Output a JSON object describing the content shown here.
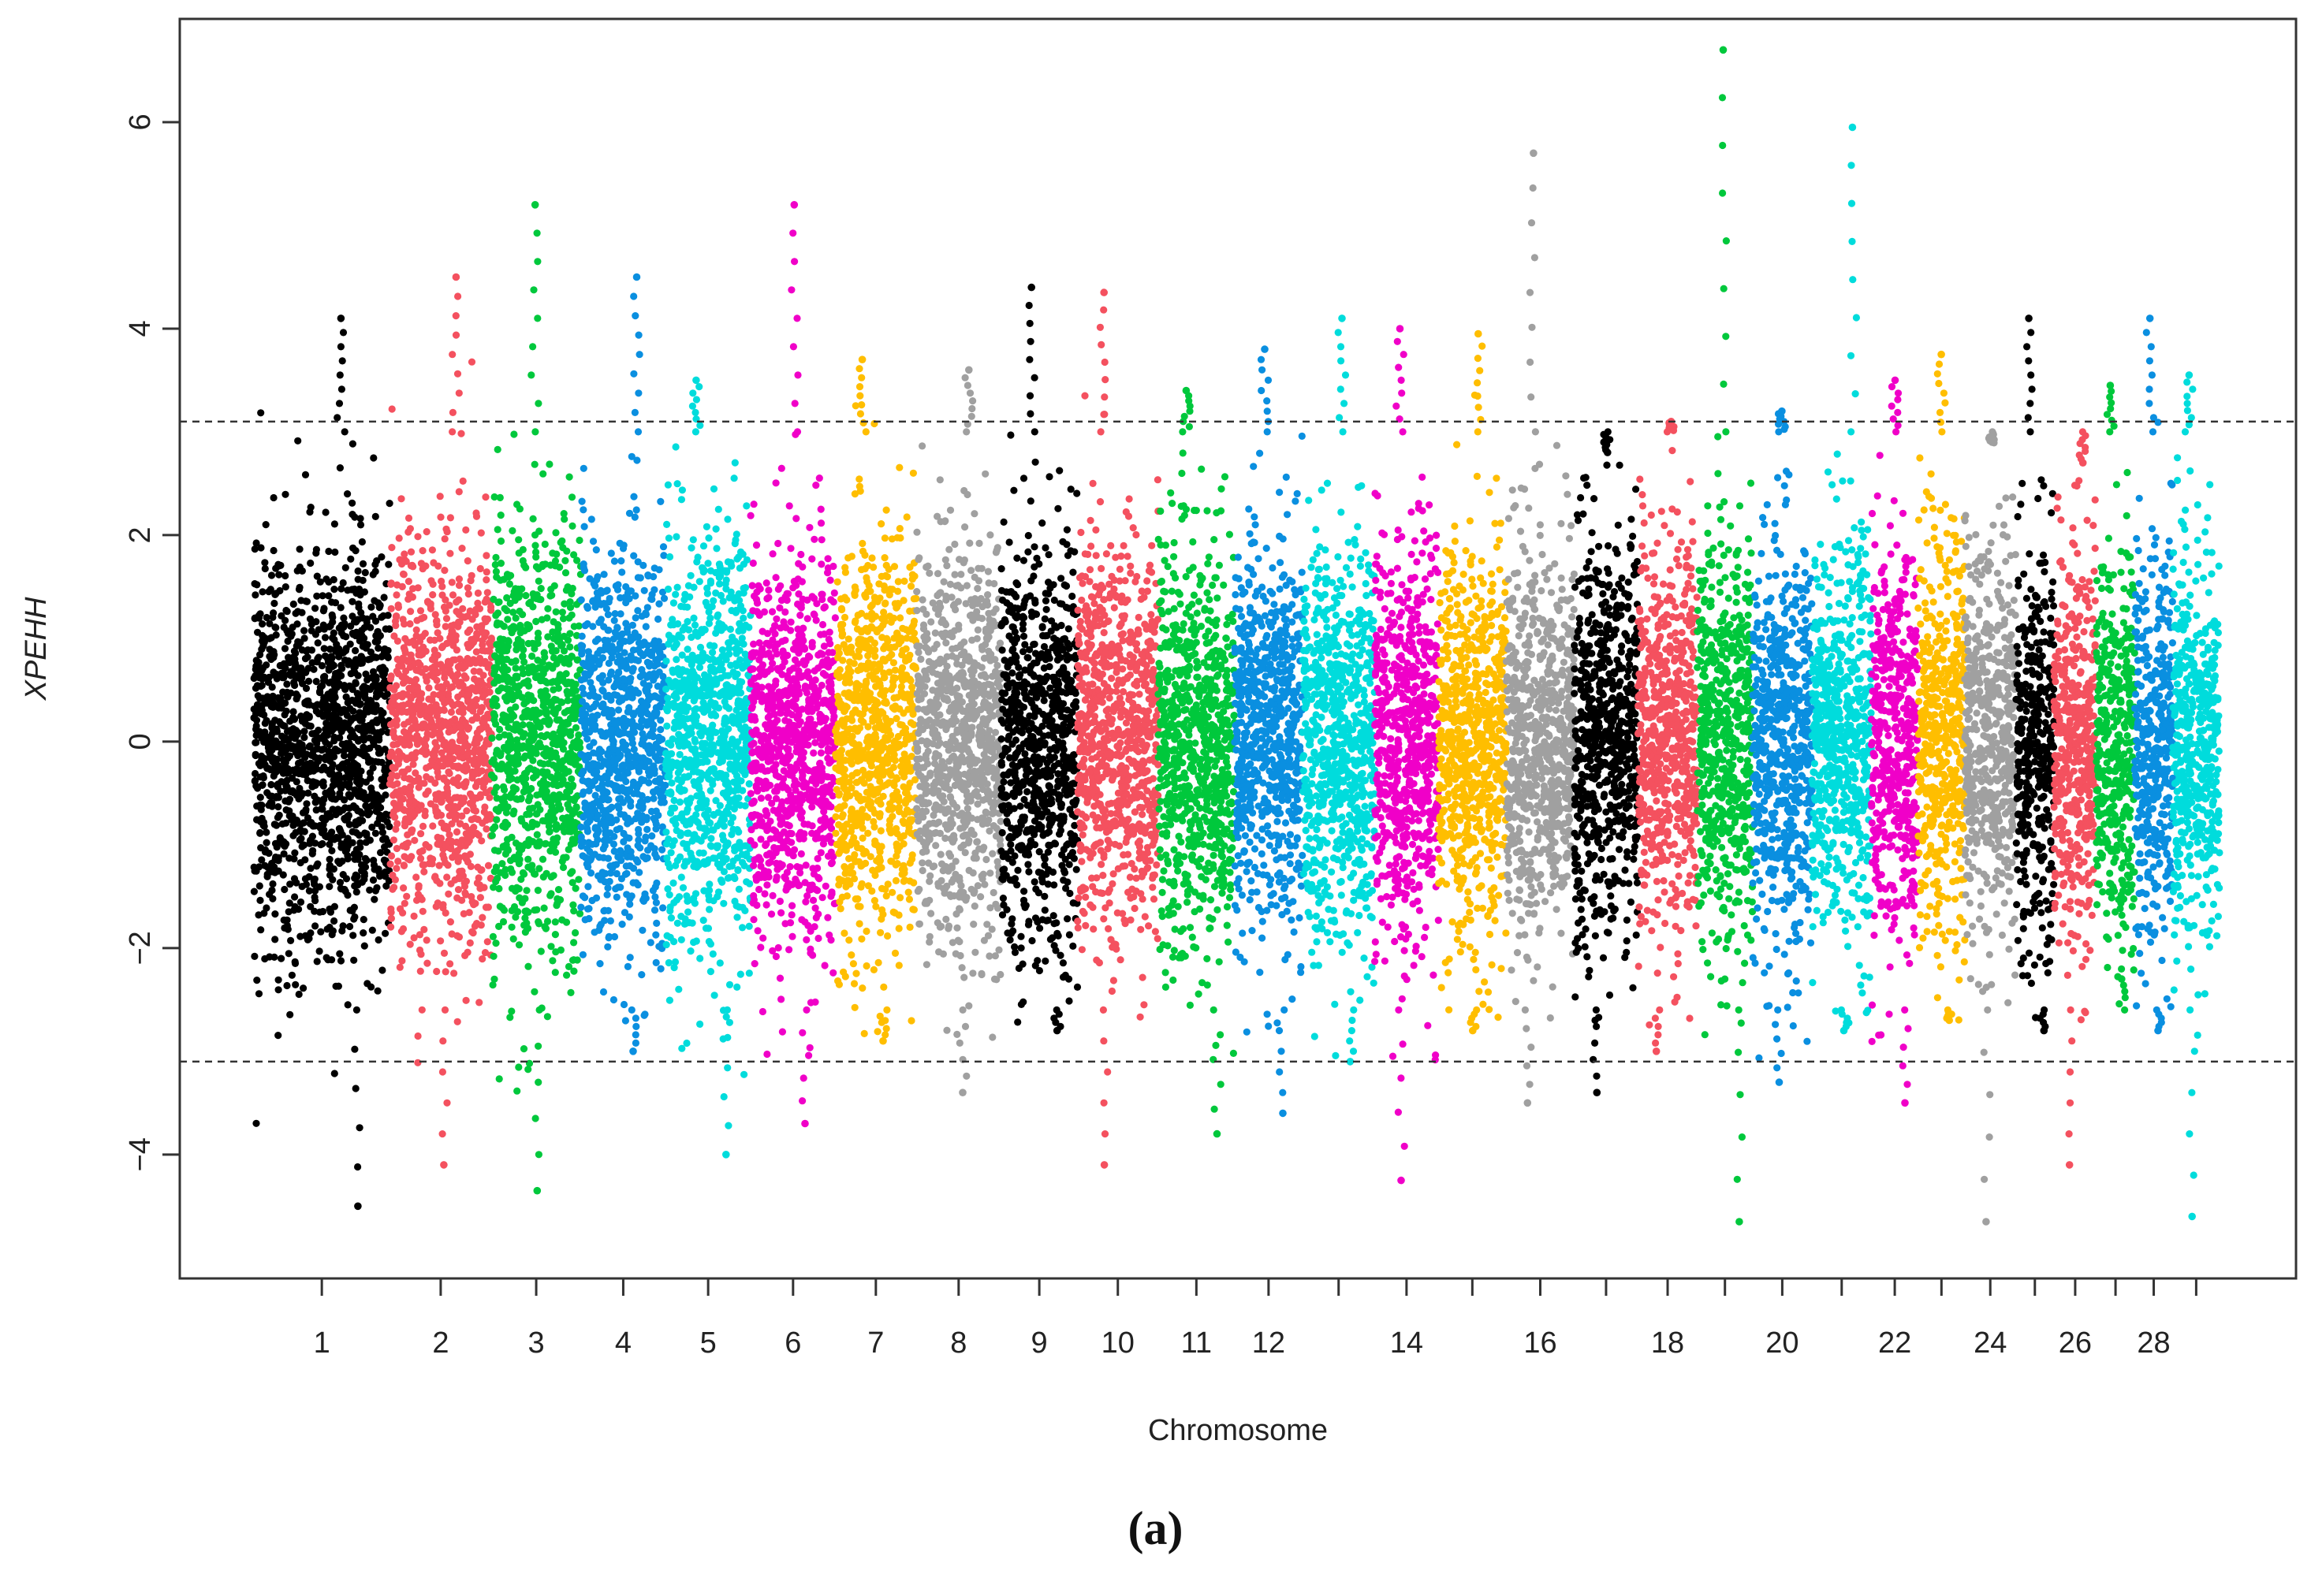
{
  "caption": "(a)",
  "chart_data": {
    "type": "scatter",
    "subtype": "manhattan",
    "title": "",
    "xlabel": "Chromosome",
    "ylabel": "XPEHH",
    "ylim": [
      -5.2,
      7.0
    ],
    "y_ticks": [
      -4,
      -2,
      0,
      2,
      4,
      6
    ],
    "y_tick_labels": [
      "−4",
      "−2",
      "0",
      "2",
      "4",
      "6"
    ],
    "threshold_upper": 3.1,
    "threshold_lower": -3.1,
    "color_cycle": [
      "#000000",
      "#f4515f",
      "#00c83c",
      "#0a8fe0",
      "#00dcdc",
      "#f000c8",
      "#ffbe00",
      "#a0a0a0"
    ],
    "chromosomes": [
      {
        "chr": 1,
        "label": "1",
        "size": 1.6,
        "max": 4.1,
        "min": -4.5
      },
      {
        "chr": 2,
        "label": "2",
        "size": 1.2,
        "max": 4.5,
        "min": -4.1
      },
      {
        "chr": 3,
        "label": "3",
        "size": 1.05,
        "max": 5.2,
        "min": -4.35
      },
      {
        "chr": 4,
        "label": "4",
        "size": 1.0,
        "max": 4.5,
        "min": -3.0
      },
      {
        "chr": 5,
        "label": "5",
        "size": 1.0,
        "max": 3.5,
        "min": -4.0
      },
      {
        "chr": 6,
        "label": "6",
        "size": 1.0,
        "max": 5.2,
        "min": -3.7
      },
      {
        "chr": 7,
        "label": "7",
        "size": 0.95,
        "max": 3.7,
        "min": -2.9
      },
      {
        "chr": 8,
        "label": "8",
        "size": 1.0,
        "max": 3.6,
        "min": -3.4
      },
      {
        "chr": 9,
        "label": "9",
        "size": 0.9,
        "max": 4.4,
        "min": -2.8
      },
      {
        "chr": 10,
        "label": "10",
        "size": 0.95,
        "max": 4.35,
        "min": -4.1
      },
      {
        "chr": 11,
        "label": "11",
        "size": 0.9,
        "max": 3.4,
        "min": -3.8
      },
      {
        "chr": 12,
        "label": "12",
        "size": 0.8,
        "max": 3.8,
        "min": -3.6
      },
      {
        "chr": 13,
        "label": "",
        "size": 0.85,
        "max": 4.1,
        "min": -3.1
      },
      {
        "chr": 14,
        "label": "14",
        "size": 0.75,
        "max": 4.0,
        "min": -4.25
      },
      {
        "chr": 15,
        "label": "",
        "size": 0.8,
        "max": 3.95,
        "min": -2.8
      },
      {
        "chr": 16,
        "label": "16",
        "size": 0.8,
        "max": 5.7,
        "min": -3.5
      },
      {
        "chr": 17,
        "label": "",
        "size": 0.75,
        "max": 2.8,
        "min": -3.4
      },
      {
        "chr": 18,
        "label": "18",
        "size": 0.7,
        "max": 3.1,
        "min": -3.0
      },
      {
        "chr": 19,
        "label": "",
        "size": 0.65,
        "max": 6.7,
        "min": -4.65
      },
      {
        "chr": 20,
        "label": "20",
        "size": 0.7,
        "max": 3.2,
        "min": -3.3
      },
      {
        "chr": 21,
        "label": "",
        "size": 0.7,
        "max": 5.95,
        "min": -2.8
      },
      {
        "chr": 22,
        "label": "22",
        "size": 0.55,
        "max": 3.5,
        "min": -3.5
      },
      {
        "chr": 23,
        "label": "",
        "size": 0.55,
        "max": 3.75,
        "min": -2.7
      },
      {
        "chr": 24,
        "label": "24",
        "size": 0.6,
        "max": 2.9,
        "min": -4.65
      },
      {
        "chr": 25,
        "label": "",
        "size": 0.45,
        "max": 4.1,
        "min": -2.8
      },
      {
        "chr": 26,
        "label": "26",
        "size": 0.5,
        "max": 2.7,
        "min": -4.1
      },
      {
        "chr": 27,
        "label": "",
        "size": 0.45,
        "max": 3.45,
        "min": -2.3
      },
      {
        "chr": 28,
        "label": "28",
        "size": 0.45,
        "max": 4.1,
        "min": -2.8
      },
      {
        "chr": 29,
        "label": "",
        "size": 0.55,
        "max": 3.55,
        "min": -4.6
      }
    ]
  }
}
